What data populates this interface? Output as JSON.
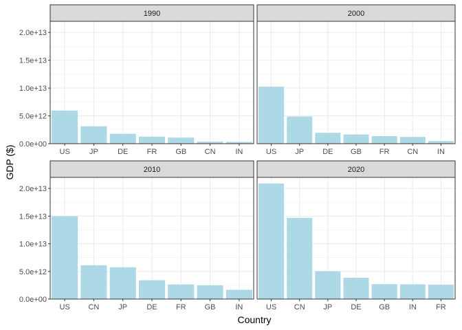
{
  "figure": {
    "xlabel": "Country",
    "ylabel": "GDP ($)"
  },
  "style": {
    "bar_color": "#add8e6",
    "strip_fill": "#d9d9d9",
    "panel_border": "#333333",
    "grid_color": "#ebebeb",
    "tick_label_color": "#4d4d4d"
  },
  "chart_data": {
    "type": "bar",
    "layout": "facet_wrap 2x2",
    "xlabel": "Country",
    "ylabel": "GDP ($)",
    "ylim": [
      0,
      22000000000000
    ],
    "y_ticks": [
      0,
      5000000000000,
      10000000000000,
      15000000000000,
      20000000000000
    ],
    "y_tick_labels": [
      "0.0e+00",
      "5.0e+12",
      "1.0e+13",
      "1.5e+13",
      "2.0e+13"
    ],
    "grid": true,
    "legend": "none",
    "panels": [
      {
        "title": "1990",
        "categories": [
          "US",
          "JP",
          "DE",
          "FR",
          "GB",
          "CN",
          "IN"
        ],
        "values": [
          5960000000000.0,
          3130000000000.0,
          1770000000000.0,
          1270000000000.0,
          1090000000000.0,
          360000000000.0,
          320000000000.0
        ]
      },
      {
        "title": "2000",
        "categories": [
          "US",
          "JP",
          "DE",
          "GB",
          "FR",
          "CN",
          "IN"
        ],
        "values": [
          10250000000000.0,
          4890000000000.0,
          1950000000000.0,
          1660000000000.0,
          1360000000000.0,
          1210000000000.0,
          470000000000.0
        ]
      },
      {
        "title": "2010",
        "categories": [
          "US",
          "CN",
          "JP",
          "DE",
          "FR",
          "GB",
          "IN"
        ],
        "values": [
          14990000000000.0,
          6090000000000.0,
          5760000000000.0,
          3400000000000.0,
          2640000000000.0,
          2480000000000.0,
          1680000000000.0
        ]
      },
      {
        "title": "2020",
        "categories": [
          "US",
          "CN",
          "JP",
          "DE",
          "GB",
          "IN",
          "FR"
        ],
        "values": [
          20890000000000.0,
          14690000000000.0,
          5040000000000.0,
          3850000000000.0,
          2700000000000.0,
          2670000000000.0,
          2600000000000.0
        ]
      }
    ]
  }
}
